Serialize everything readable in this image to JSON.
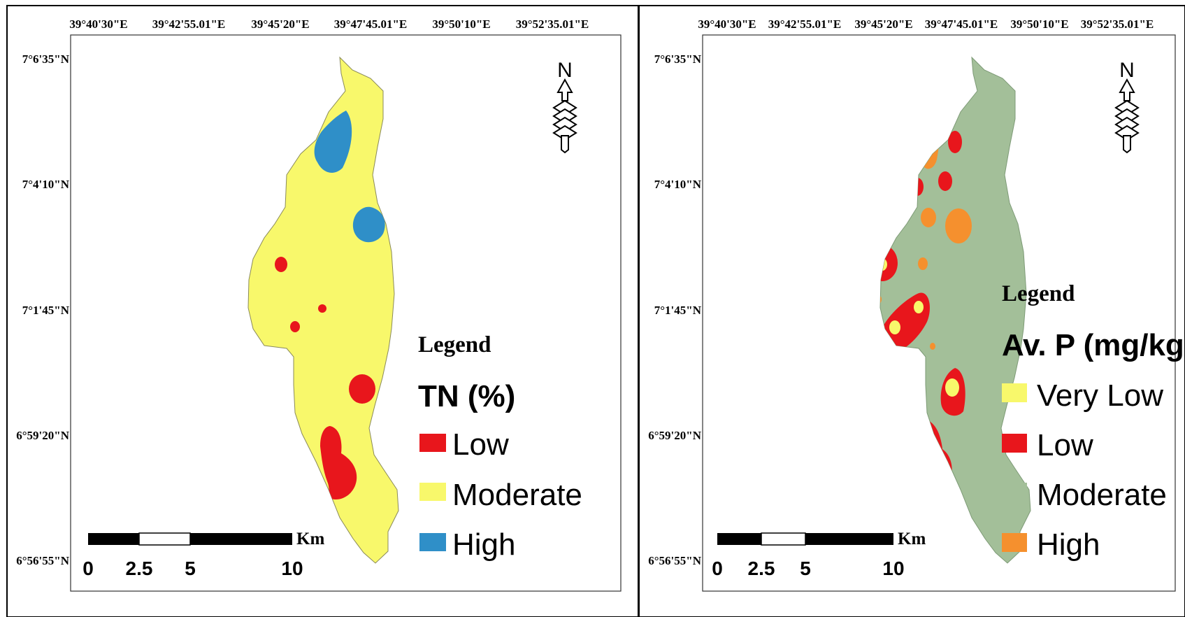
{
  "figure": {
    "panels": [
      {
        "id": "tn",
        "legend_heading": "Legend",
        "variable_label": "TN (%)",
        "classes": [
          {
            "label": "Low",
            "color": "#e8161c"
          },
          {
            "label": "Moderate",
            "color": "#f8f86b"
          },
          {
            "label": "High",
            "color": "#2f8fc8"
          }
        ],
        "base_color": "#f8f86b"
      },
      {
        "id": "avp",
        "legend_heading": "Legend",
        "variable_label": "Av. P (mg/kg)",
        "classes": [
          {
            "label": "Very Low",
            "color": "#f8f86b"
          },
          {
            "label": "Low",
            "color": "#e8161c"
          },
          {
            "label": "Moderate",
            "color": "#a3bf99"
          },
          {
            "label": "High",
            "color": "#f5902e"
          }
        ],
        "base_color": "#a3bf99"
      }
    ],
    "longitude_labels": [
      "39°40'30\"E",
      "39°42'55.01\"E",
      "39°45'20\"E",
      "39°47'45.01\"E",
      "39°50'10\"E",
      "39°52'35.01\"E"
    ],
    "latitude_labels": [
      "7°6'35\"N",
      "7°4'10\"N",
      "7°1'45\"N",
      "6°59'20\"N",
      "6°56'55\"N"
    ],
    "scale_bar": {
      "unit": "Km",
      "ticks": [
        "0",
        "2.5",
        "5",
        "10"
      ]
    },
    "north_arrow": {
      "letter": "N",
      "icon": "north-arrow-icon"
    }
  }
}
